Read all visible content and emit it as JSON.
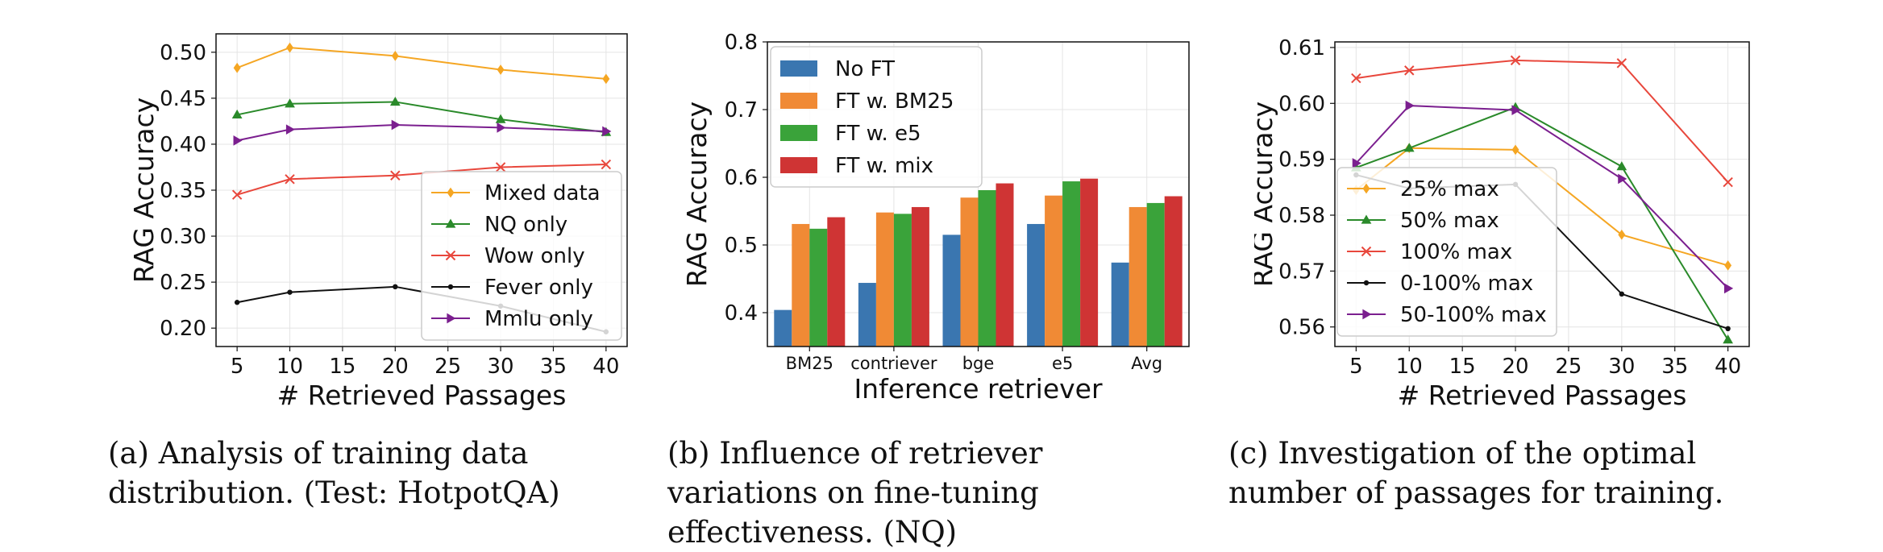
{
  "chart_data": [
    {
      "type": "line",
      "xlabel": "# Retrieved Passages",
      "ylabel": "RAG Accuracy",
      "x": [
        5,
        10,
        20,
        30,
        40
      ],
      "xticks": [
        5,
        10,
        15,
        20,
        25,
        30,
        35,
        40
      ],
      "xlim": [
        3,
        42
      ],
      "yticks": [
        0.2,
        0.25,
        0.3,
        0.35,
        0.4,
        0.45,
        0.5
      ],
      "ylim": [
        0.18,
        0.52
      ],
      "grid": true,
      "legend_position": "lower-right",
      "series": [
        {
          "name": "Mixed data",
          "color": "#f5a623",
          "marker": "diamond",
          "values": [
            0.483,
            0.505,
            0.496,
            0.481,
            0.471
          ]
        },
        {
          "name": "NQ only",
          "color": "#2a8a2a",
          "marker": "triangle",
          "values": [
            0.432,
            0.444,
            0.446,
            0.427,
            0.413
          ]
        },
        {
          "name": "Wow only",
          "color": "#e8473c",
          "marker": "x",
          "values": [
            0.345,
            0.362,
            0.366,
            0.375,
            0.378
          ]
        },
        {
          "name": "Fever only",
          "color": "#111111",
          "marker": "dot",
          "values": [
            0.228,
            0.239,
            0.245,
            0.224,
            0.196
          ]
        },
        {
          "name": "Mmlu only",
          "color": "#7b1f8f",
          "marker": "triangle-right",
          "values": [
            0.404,
            0.416,
            0.421,
            0.418,
            0.414
          ]
        }
      ],
      "caption": "(a) Analysis of training data distribution. (Test: HotpotQA)"
    },
    {
      "type": "bar",
      "xlabel": "Inference retriever",
      "ylabel": "RAG Accuracy",
      "categories": [
        "BM25",
        "contriever",
        "bge",
        "e5",
        "Avg"
      ],
      "yticks": [
        0.4,
        0.5,
        0.6,
        0.7,
        0.8
      ],
      "ylim": [
        0.35,
        0.8
      ],
      "grid": true,
      "legend_position": "top-left",
      "series": [
        {
          "name": "No FT",
          "color": "#3a76b0",
          "values": [
            0.404,
            0.444,
            0.515,
            0.531,
            0.474
          ]
        },
        {
          "name": "FT w. BM25",
          "color": "#f08a35",
          "values": [
            0.531,
            0.548,
            0.57,
            0.573,
            0.556
          ]
        },
        {
          "name": "FT w. e5",
          "color": "#3aa33a",
          "values": [
            0.524,
            0.546,
            0.581,
            0.594,
            0.562
          ]
        },
        {
          "name": "FT w. mix",
          "color": "#cf3434",
          "values": [
            0.541,
            0.556,
            0.591,
            0.598,
            0.572
          ]
        }
      ],
      "caption": "(b) Influence of retriever variations on fine-tuning effectiveness. (NQ)"
    },
    {
      "type": "line",
      "xlabel": "# Retrieved Passages",
      "ylabel": "RAG Accuracy",
      "x": [
        5,
        10,
        20,
        30,
        40
      ],
      "xticks": [
        5,
        10,
        15,
        20,
        25,
        30,
        35,
        40
      ],
      "xlim": [
        3,
        42
      ],
      "yticks": [
        0.56,
        0.57,
        0.58,
        0.59,
        0.6,
        0.61
      ],
      "ylim": [
        0.5565,
        0.611
      ],
      "grid": true,
      "legend_position": "lower-left",
      "series": [
        {
          "name": "25% max",
          "color": "#f5a623",
          "marker": "diamond",
          "values": [
            0.5845,
            0.592,
            0.5917,
            0.5765,
            0.571
          ]
        },
        {
          "name": "50% max",
          "color": "#2a8a2a",
          "marker": "triangle",
          "values": [
            0.5885,
            0.592,
            0.5993,
            0.5887,
            0.5577
          ]
        },
        {
          "name": "100% max",
          "color": "#e8473c",
          "marker": "x",
          "values": [
            0.6045,
            0.6059,
            0.6077,
            0.6072,
            0.5859
          ]
        },
        {
          "name": "0-100% max",
          "color": "#111111",
          "marker": "dot",
          "values": [
            0.5872,
            0.5848,
            0.5855,
            0.5659,
            0.5597
          ]
        },
        {
          "name": "50-100% max",
          "color": "#7b1f8f",
          "marker": "triangle-right",
          "values": [
            0.5893,
            0.5996,
            0.5988,
            0.5865,
            0.5669
          ]
        }
      ],
      "caption": "(c) Investigation of the optimal number of passages for training."
    }
  ]
}
